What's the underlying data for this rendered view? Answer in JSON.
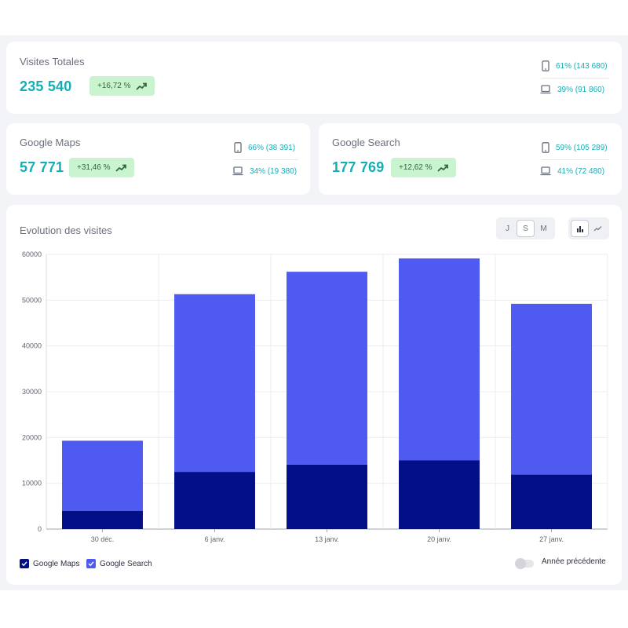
{
  "totals": {
    "title": "Visites Totales",
    "value": "235 540",
    "growth": "+16,72 %",
    "mobile": "61% (143 680)",
    "desktop": "39% (91 860)"
  },
  "maps": {
    "title": "Google Maps",
    "value": "57 771",
    "growth": "+31,46 %",
    "mobile": "66% (38 391)",
    "desktop": "34% (19 380)"
  },
  "search": {
    "title": "Google Search",
    "value": "177 769",
    "growth": "+12,62 %",
    "mobile": "59% (105 289)",
    "desktop": "41% (72 480)"
  },
  "evolution": {
    "title": "Evolution des visites",
    "period_buttons": [
      {
        "label": "J",
        "active": false
      },
      {
        "label": "S",
        "active": true
      },
      {
        "label": "M",
        "active": false
      }
    ],
    "chart_type_buttons": [
      {
        "icon": "bar-chart-icon",
        "active": true
      },
      {
        "icon": "line-chart-icon",
        "active": false
      }
    ],
    "legend": [
      "Google Maps",
      "Google Search"
    ],
    "previous_year_label": "Année précédente",
    "previous_year_enabled": false
  },
  "colors": {
    "accent": "#16aeb4",
    "maps": "#020f87",
    "search": "#4f5bf0",
    "badge_bg": "#c9f4cf",
    "badge_text": "#2f6b36"
  },
  "chart_data": {
    "type": "bar",
    "stacked": true,
    "categories": [
      "30 déc.",
      "6 janv.",
      "13 janv.",
      "20 janv.",
      "27 janv."
    ],
    "series": [
      {
        "name": "Google Maps",
        "values": [
          4000,
          12500,
          14100,
          15000,
          11900
        ]
      },
      {
        "name": "Google Search",
        "values": [
          15300,
          38800,
          42100,
          44100,
          37300
        ]
      }
    ],
    "ylim": [
      0,
      60000
    ],
    "yticks": [
      0,
      10000,
      20000,
      30000,
      40000,
      50000,
      60000
    ],
    "grid": true,
    "legend_position": "bottom-left"
  }
}
